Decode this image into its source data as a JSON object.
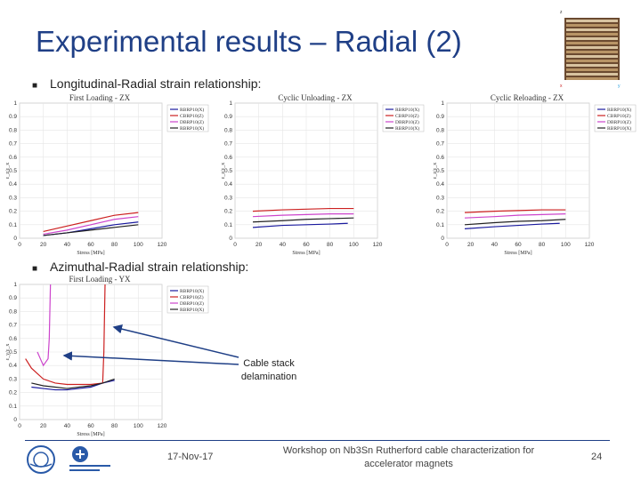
{
  "slide": {
    "title": "Experimental results – Radial (2)",
    "bullet1": "Longitudinal-Radial strain relationship:",
    "bullet2": "Azimuthal-Radial strain relationship:",
    "annotation": "Cable stack delamination",
    "footer": {
      "date": "17-Nov-17",
      "workshop": "Workshop on Nb3Sn Rutherford cable characterization for accelerator magnets",
      "page": "24"
    },
    "thumbnail_labels": [
      "z",
      "x",
      "y"
    ]
  },
  "colors": {
    "title": "#1f3f86",
    "series": [
      "#1a1a9e",
      "#cc2020",
      "#cc44cc",
      "#222222"
    ],
    "arrow": "#1f3f86"
  },
  "chart_data": [
    {
      "type": "line",
      "title": "First Loading - ZX",
      "xlabel": "Stress [MPa]",
      "ylabel": "ε_z/ε_x",
      "xlim": [
        0,
        120
      ],
      "ylim": [
        0,
        1
      ],
      "xticks": [
        0,
        20,
        40,
        60,
        80,
        100,
        120
      ],
      "yticks": [
        0,
        0.1,
        0.2,
        0.3,
        0.4,
        0.5,
        0.6,
        0.7,
        0.8,
        0.9,
        1
      ],
      "legend": [
        "RBRP10(X)",
        "CBRP10(Z)",
        "DBRP10(Z)",
        "RBRP10(X)"
      ],
      "series": [
        {
          "name": "RBRP10(X)",
          "x": [
            20,
            40,
            60,
            80,
            100
          ],
          "y": [
            0.02,
            0.04,
            0.07,
            0.1,
            0.12
          ]
        },
        {
          "name": "CBRP10(Z)",
          "x": [
            20,
            40,
            60,
            80,
            100
          ],
          "y": [
            0.05,
            0.09,
            0.13,
            0.17,
            0.19
          ]
        },
        {
          "name": "DBRP10(Z)",
          "x": [
            20,
            40,
            60,
            80,
            100
          ],
          "y": [
            0.03,
            0.06,
            0.1,
            0.14,
            0.16
          ]
        },
        {
          "name": "RBRP10(X)",
          "x": [
            20,
            40,
            60,
            80,
            100
          ],
          "y": [
            0.02,
            0.04,
            0.06,
            0.08,
            0.1
          ]
        }
      ]
    },
    {
      "type": "line",
      "title": "Cyclic Unloading - ZX",
      "xlabel": "Stress [MPa]",
      "ylabel": "ε_z/ε_x",
      "xlim": [
        0,
        120
      ],
      "ylim": [
        0,
        1
      ],
      "xticks": [
        0,
        20,
        40,
        60,
        80,
        100,
        120
      ],
      "yticks": [
        0,
        0.1,
        0.2,
        0.3,
        0.4,
        0.5,
        0.6,
        0.7,
        0.8,
        0.9,
        1
      ],
      "legend": [
        "RBRP10(X)",
        "CBRP10(Z)",
        "DBRP10(Z)",
        "RBRP10(X)"
      ],
      "series": [
        {
          "name": "RBRP10(X)",
          "x": [
            15,
            40,
            60,
            80,
            95
          ],
          "y": [
            0.08,
            0.095,
            0.1,
            0.105,
            0.11
          ]
        },
        {
          "name": "CBRP10(Z)",
          "x": [
            15,
            40,
            60,
            80,
            100
          ],
          "y": [
            0.2,
            0.21,
            0.215,
            0.22,
            0.22
          ]
        },
        {
          "name": "DBRP10(Z)",
          "x": [
            15,
            40,
            60,
            80,
            100
          ],
          "y": [
            0.16,
            0.17,
            0.175,
            0.18,
            0.18
          ]
        },
        {
          "name": "RBRP10(X)",
          "x": [
            15,
            40,
            60,
            80,
            100
          ],
          "y": [
            0.12,
            0.13,
            0.14,
            0.145,
            0.15
          ]
        }
      ]
    },
    {
      "type": "line",
      "title": "Cyclic Reloading - ZX",
      "xlabel": "Stress [MPa]",
      "ylabel": "ε_z/ε_x",
      "xlim": [
        0,
        120
      ],
      "ylim": [
        0,
        1
      ],
      "xticks": [
        0,
        20,
        40,
        60,
        80,
        100,
        120
      ],
      "yticks": [
        0,
        0.1,
        0.2,
        0.3,
        0.4,
        0.5,
        0.6,
        0.7,
        0.8,
        0.9,
        1
      ],
      "legend": [
        "RBRP10(X)",
        "CBRP10(Z)",
        "DBRP10(Z)",
        "RBRP10(X)"
      ],
      "series": [
        {
          "name": "RBRP10(X)",
          "x": [
            15,
            40,
            60,
            80,
            95
          ],
          "y": [
            0.07,
            0.085,
            0.095,
            0.105,
            0.11
          ]
        },
        {
          "name": "CBRP10(Z)",
          "x": [
            15,
            40,
            60,
            80,
            100
          ],
          "y": [
            0.19,
            0.2,
            0.205,
            0.21,
            0.21
          ]
        },
        {
          "name": "DBRP10(Z)",
          "x": [
            15,
            40,
            60,
            80,
            100
          ],
          "y": [
            0.15,
            0.16,
            0.17,
            0.175,
            0.18
          ]
        },
        {
          "name": "RBRP10(X)",
          "x": [
            15,
            40,
            60,
            80,
            100
          ],
          "y": [
            0.1,
            0.115,
            0.125,
            0.13,
            0.14
          ]
        }
      ]
    },
    {
      "type": "line",
      "title": "First Loading - YX",
      "xlabel": "Stress [MPa]",
      "ylabel": "ε_y/ε_x",
      "xlim": [
        0,
        120
      ],
      "ylim": [
        0,
        1
      ],
      "xticks": [
        0,
        20,
        40,
        60,
        80,
        100,
        120
      ],
      "yticks": [
        0,
        0.1,
        0.2,
        0.3,
        0.4,
        0.5,
        0.6,
        0.7,
        0.8,
        0.9,
        1
      ],
      "legend": [
        "RBRP10(X)",
        "CBRP10(Z)",
        "DBRP10(Z)",
        "RBRP10(X)"
      ],
      "series": [
        {
          "name": "RBRP10(X)",
          "x": [
            10,
            20,
            30,
            40,
            50,
            60,
            70,
            80
          ],
          "y": [
            0.24,
            0.23,
            0.22,
            0.22,
            0.23,
            0.24,
            0.27,
            0.29
          ]
        },
        {
          "name": "CBRP10(Z)",
          "x": [
            5,
            10,
            20,
            30,
            40,
            50,
            60,
            70,
            71,
            72
          ],
          "y": [
            0.45,
            0.38,
            0.3,
            0.27,
            0.26,
            0.26,
            0.26,
            0.27,
            0.5,
            1.0
          ]
        },
        {
          "name": "DBRP10(Z)",
          "x": [
            15,
            20,
            24,
            25,
            26
          ],
          "y": [
            0.5,
            0.4,
            0.45,
            0.6,
            1.0
          ]
        },
        {
          "name": "RBRP10(X)",
          "x": [
            10,
            20,
            30,
            40,
            50,
            60,
            70,
            80
          ],
          "y": [
            0.27,
            0.25,
            0.24,
            0.23,
            0.24,
            0.25,
            0.27,
            0.3
          ]
        }
      ]
    }
  ]
}
